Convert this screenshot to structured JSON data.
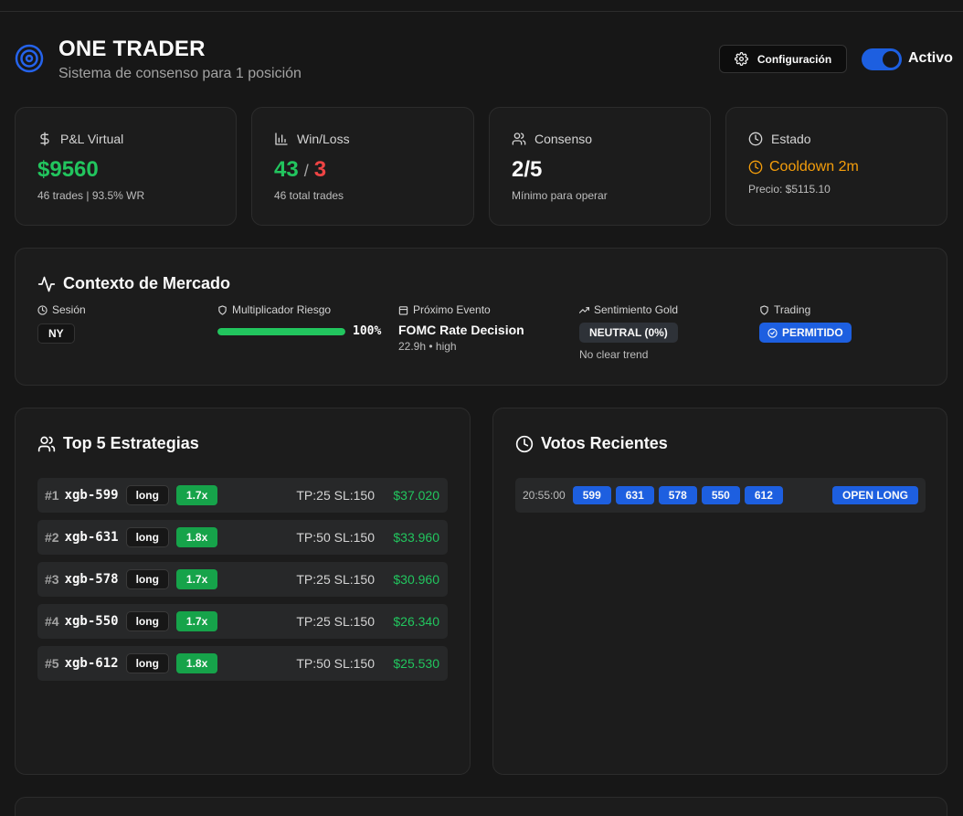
{
  "header": {
    "title": "ONE TRADER",
    "subtitle": "Sistema de consenso para 1 posición",
    "config_label": "Configuración",
    "toggle_label": "Activo",
    "toggle_on": true
  },
  "stats": {
    "pnl": {
      "label": "P&L Virtual",
      "value": "$9560",
      "sub": "46 trades | 93.5% WR"
    },
    "winloss": {
      "label": "Win/Loss",
      "wins": "43",
      "sep": "/",
      "losses": "3",
      "sub": "46 total trades"
    },
    "consenso": {
      "label": "Consenso",
      "value": "2/5",
      "sub": "Mínimo para operar"
    },
    "estado": {
      "label": "Estado",
      "value": "Cooldown 2m",
      "sub": "Precio: $5115.10"
    }
  },
  "context": {
    "title": "Contexto de Mercado",
    "session": {
      "label": "Sesión",
      "value": "NY"
    },
    "risk": {
      "label": "Multiplicador Riesgo",
      "value": "100%",
      "level": 1.0
    },
    "event": {
      "label": "Próximo Evento",
      "name": "FOMC Rate Decision",
      "meta": "22.9h • high"
    },
    "sentiment": {
      "label": "Sentimiento Gold",
      "value": "NEUTRAL (0%)",
      "sub": "No clear trend"
    },
    "trading": {
      "label": "Trading",
      "value": "PERMITIDO"
    }
  },
  "strategies": {
    "title": "Top 5 Estrategias",
    "items": [
      {
        "rank": "#1",
        "name": "xgb-599",
        "side": "long",
        "mult": "1.7x",
        "tpsl": "TP:25 SL:150",
        "pnl": "$37.020"
      },
      {
        "rank": "#2",
        "name": "xgb-631",
        "side": "long",
        "mult": "1.8x",
        "tpsl": "TP:50 SL:150",
        "pnl": "$33.960"
      },
      {
        "rank": "#3",
        "name": "xgb-578",
        "side": "long",
        "mult": "1.7x",
        "tpsl": "TP:25 SL:150",
        "pnl": "$30.960"
      },
      {
        "rank": "#4",
        "name": "xgb-550",
        "side": "long",
        "mult": "1.7x",
        "tpsl": "TP:25 SL:150",
        "pnl": "$26.340"
      },
      {
        "rank": "#5",
        "name": "xgb-612",
        "side": "long",
        "mult": "1.8x",
        "tpsl": "TP:50 SL:150",
        "pnl": "$25.530"
      }
    ]
  },
  "votes": {
    "title": "Votos Recientes",
    "items": [
      {
        "time": "20:55:00",
        "ids": [
          "599",
          "631",
          "578",
          "550",
          "612"
        ],
        "action": "OPEN LONG"
      }
    ]
  },
  "colors": {
    "background": "#171717",
    "card": "#1c1c1c",
    "accent_blue": "#1d5fe0",
    "positive": "#22c55e",
    "negative": "#ef4444",
    "warning": "#f59e0b"
  }
}
